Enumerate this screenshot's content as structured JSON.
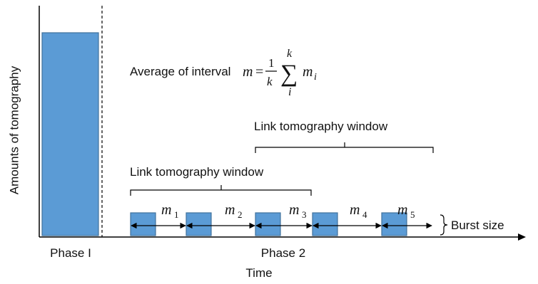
{
  "y_axis_label": "Amounts of tomography",
  "x_axis_label": "Time",
  "phase_labels": [
    "Phase I",
    "Phase 2"
  ],
  "average_label": "Average of interval",
  "formula": {
    "lhs": "m",
    "eq": "=",
    "num": "1",
    "den": "k",
    "sum_upper": "k",
    "sum_lower": "i",
    "sum_symbol": "∑",
    "term": "m",
    "term_sub": "i"
  },
  "windows": [
    {
      "label": "Link tomography window"
    },
    {
      "label": "Link tomography window"
    }
  ],
  "intervals": [
    {
      "m": "m",
      "sub": "1"
    },
    {
      "m": "m",
      "sub": "2"
    },
    {
      "m": "m",
      "sub": "3"
    },
    {
      "m": "m",
      "sub": "4"
    },
    {
      "m": "m",
      "sub": "5"
    }
  ],
  "burst_label": "Burst size",
  "colors": {
    "bar_fill": "#5B9BD5",
    "bar_stroke": "#41719C",
    "line": "#000000"
  }
}
